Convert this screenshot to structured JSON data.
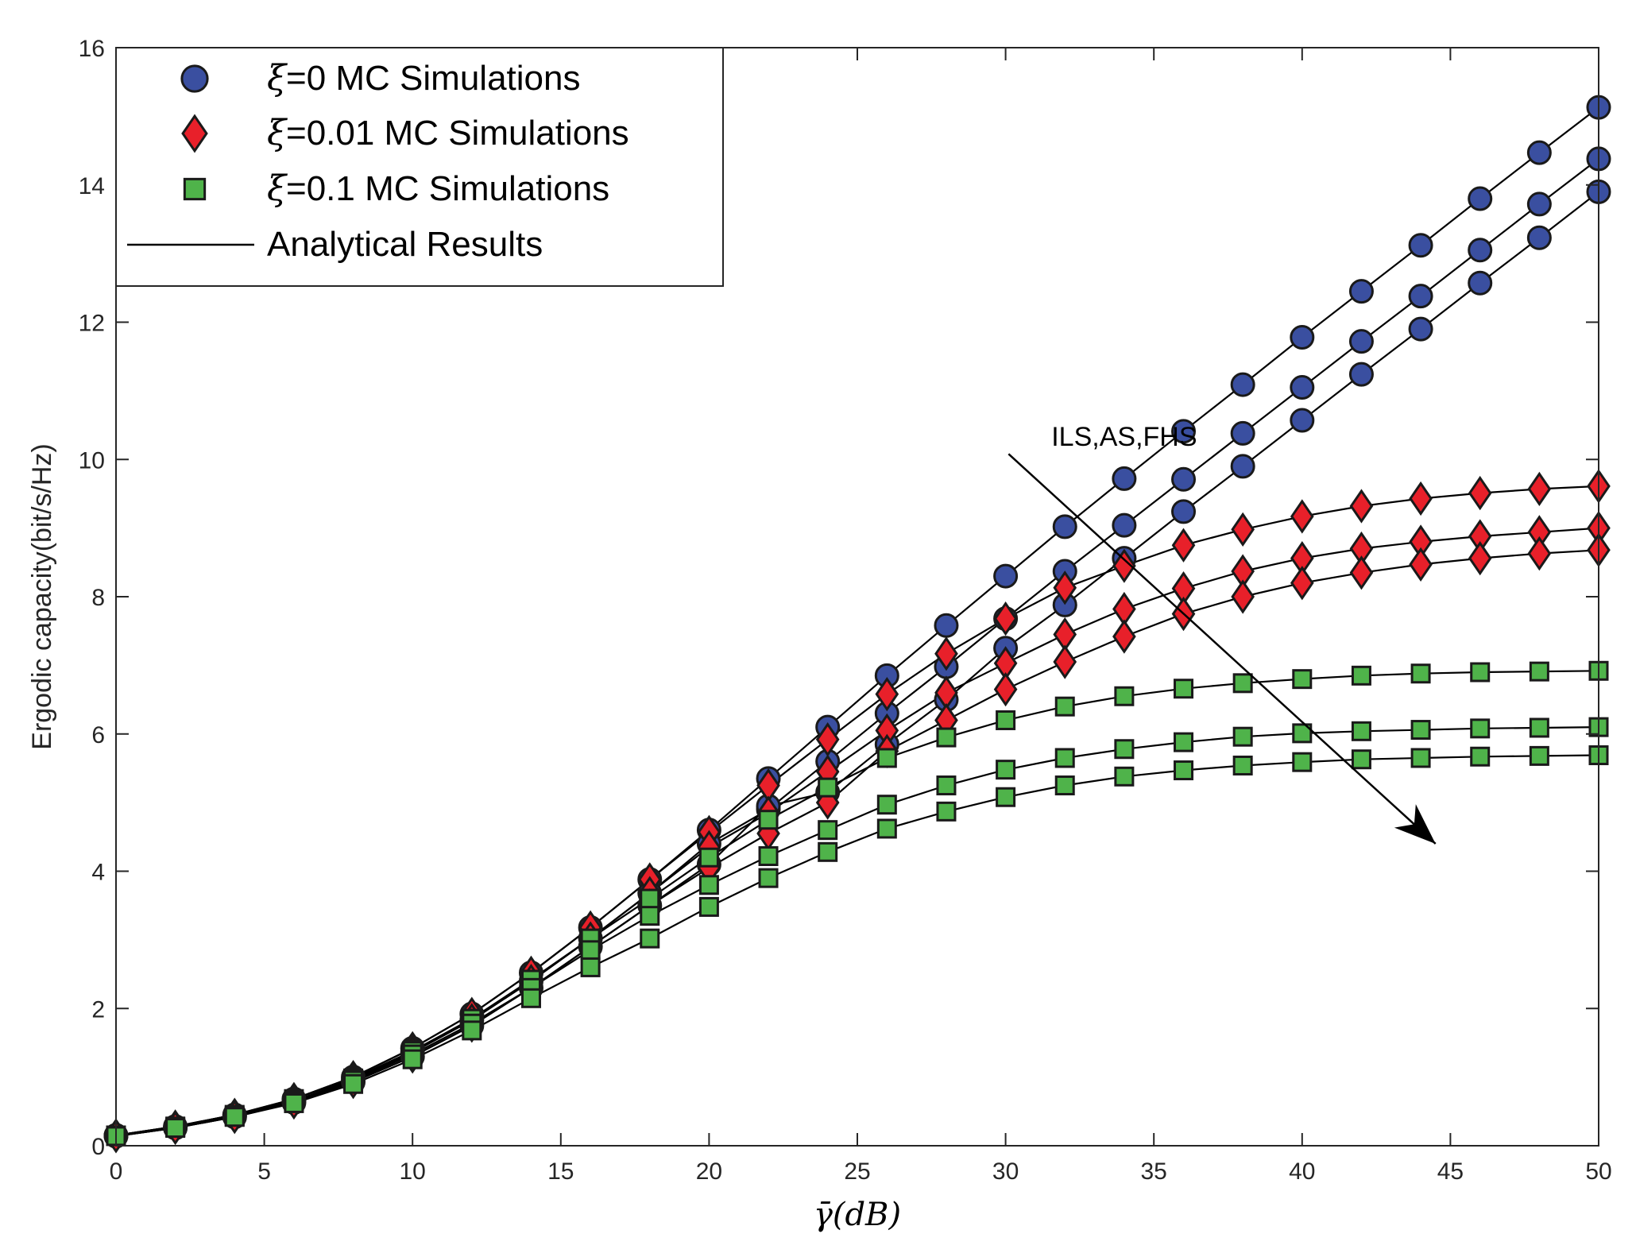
{
  "chart_data": {
    "type": "line",
    "title": "",
    "xlabel": "γ̄(dB)",
    "ylabel": "Ergodic capacity(bit/s/Hz)",
    "xlim": [
      0,
      50
    ],
    "ylim": [
      0,
      16
    ],
    "xticks": [
      0,
      5,
      10,
      15,
      20,
      25,
      30,
      35,
      40,
      45,
      50
    ],
    "yticks": [
      0,
      2,
      4,
      6,
      8,
      10,
      12,
      14,
      16
    ],
    "x": [
      0,
      2,
      4,
      6,
      8,
      10,
      12,
      14,
      16,
      18,
      20,
      22,
      24,
      26,
      28,
      30,
      32,
      34,
      36,
      38,
      40,
      42,
      44,
      46,
      48,
      50
    ],
    "legend_position": "top-left",
    "legend": [
      {
        "symbol": "ξ",
        "text": "=0  MC Simulations",
        "marker": "circle",
        "color": "#3a4fa0"
      },
      {
        "symbol": "ξ",
        "text": "=0.01  MC Simulations",
        "marker": "diamond",
        "color": "#e8202a"
      },
      {
        "symbol": "ξ",
        "text": "=0.1  MC Simulations",
        "marker": "square",
        "color": "#4fb34a"
      },
      {
        "symbol": "",
        "text": "Analytical Results",
        "marker": "line",
        "color": "#000000"
      }
    ],
    "annotation": {
      "text": "ILS,AS,FHS",
      "x": 34,
      "y": 10.2,
      "arrow_from": [
        30.1,
        10.08
      ],
      "arrow_to": [
        44.5,
        4.4
      ]
    },
    "series": [
      {
        "name": "ξ=0 ILS",
        "marker": "circle",
        "values": [
          0.15,
          0.28,
          0.45,
          0.68,
          1.0,
          1.42,
          1.92,
          2.52,
          3.18,
          3.88,
          4.6,
          5.35,
          6.1,
          6.85,
          7.58,
          8.3,
          9.02,
          9.72,
          10.41,
          11.09,
          11.78,
          12.45,
          13.12,
          13.8,
          14.47,
          15.13
        ]
      },
      {
        "name": "ξ=0 AS",
        "marker": "circle",
        "values": [
          0.15,
          0.27,
          0.43,
          0.65,
          0.96,
          1.36,
          1.83,
          2.4,
          3.02,
          3.68,
          4.4,
          4.9,
          5.6,
          6.3,
          6.98,
          7.68,
          8.37,
          9.04,
          9.71,
          10.38,
          11.05,
          11.72,
          12.38,
          13.05,
          13.72,
          14.38
        ]
      },
      {
        "name": "ξ=0 FHS",
        "marker": "circle",
        "values": [
          0.14,
          0.26,
          0.42,
          0.63,
          0.93,
          1.3,
          1.75,
          2.3,
          2.9,
          3.5,
          4.1,
          4.95,
          5.15,
          5.85,
          6.5,
          7.25,
          7.88,
          8.56,
          9.24,
          9.9,
          10.57,
          11.24,
          11.9,
          12.57,
          13.23,
          13.9
        ]
      },
      {
        "name": "ξ=0.01 ILS",
        "marker": "diamond",
        "values": [
          0.15,
          0.28,
          0.45,
          0.68,
          1.0,
          1.42,
          1.92,
          2.52,
          3.18,
          3.88,
          4.57,
          5.25,
          5.92,
          6.58,
          7.17,
          7.68,
          8.13,
          8.45,
          8.75,
          8.98,
          9.17,
          9.32,
          9.43,
          9.51,
          9.57,
          9.61
        ]
      },
      {
        "name": "ξ=0.01 AS",
        "marker": "diamond",
        "values": [
          0.15,
          0.27,
          0.43,
          0.65,
          0.96,
          1.36,
          1.83,
          2.4,
          3.02,
          3.68,
          4.35,
          4.85,
          5.45,
          6.05,
          6.6,
          7.03,
          7.45,
          7.82,
          8.12,
          8.37,
          8.56,
          8.7,
          8.8,
          8.88,
          8.94,
          9.0
        ]
      },
      {
        "name": "ξ=0.01 FHS",
        "marker": "diamond",
        "values": [
          0.14,
          0.26,
          0.42,
          0.63,
          0.93,
          1.3,
          1.75,
          2.3,
          2.9,
          3.5,
          4.05,
          4.55,
          5.0,
          5.75,
          6.2,
          6.65,
          7.05,
          7.42,
          7.75,
          8.0,
          8.2,
          8.35,
          8.47,
          8.56,
          8.63,
          8.68
        ]
      },
      {
        "name": "ξ=0.1 ILS",
        "marker": "square",
        "values": [
          0.15,
          0.28,
          0.45,
          0.68,
          0.98,
          1.38,
          1.85,
          2.42,
          3.02,
          3.6,
          4.2,
          4.75,
          5.22,
          5.65,
          5.95,
          6.2,
          6.4,
          6.55,
          6.66,
          6.74,
          6.8,
          6.85,
          6.88,
          6.9,
          6.91,
          6.92
        ]
      },
      {
        "name": "ξ=0.1 AS",
        "marker": "square",
        "values": [
          0.15,
          0.27,
          0.43,
          0.65,
          0.95,
          1.33,
          1.78,
          2.3,
          2.85,
          3.35,
          3.8,
          4.22,
          4.6,
          4.97,
          5.25,
          5.48,
          5.65,
          5.78,
          5.88,
          5.96,
          6.01,
          6.04,
          6.06,
          6.08,
          6.09,
          6.1
        ]
      },
      {
        "name": "ξ=0.1 FHS",
        "marker": "square",
        "values": [
          0.14,
          0.26,
          0.42,
          0.62,
          0.9,
          1.26,
          1.68,
          2.15,
          2.6,
          3.02,
          3.48,
          3.9,
          4.28,
          4.62,
          4.87,
          5.08,
          5.25,
          5.38,
          5.47,
          5.54,
          5.59,
          5.63,
          5.65,
          5.67,
          5.68,
          5.69
        ]
      }
    ]
  }
}
